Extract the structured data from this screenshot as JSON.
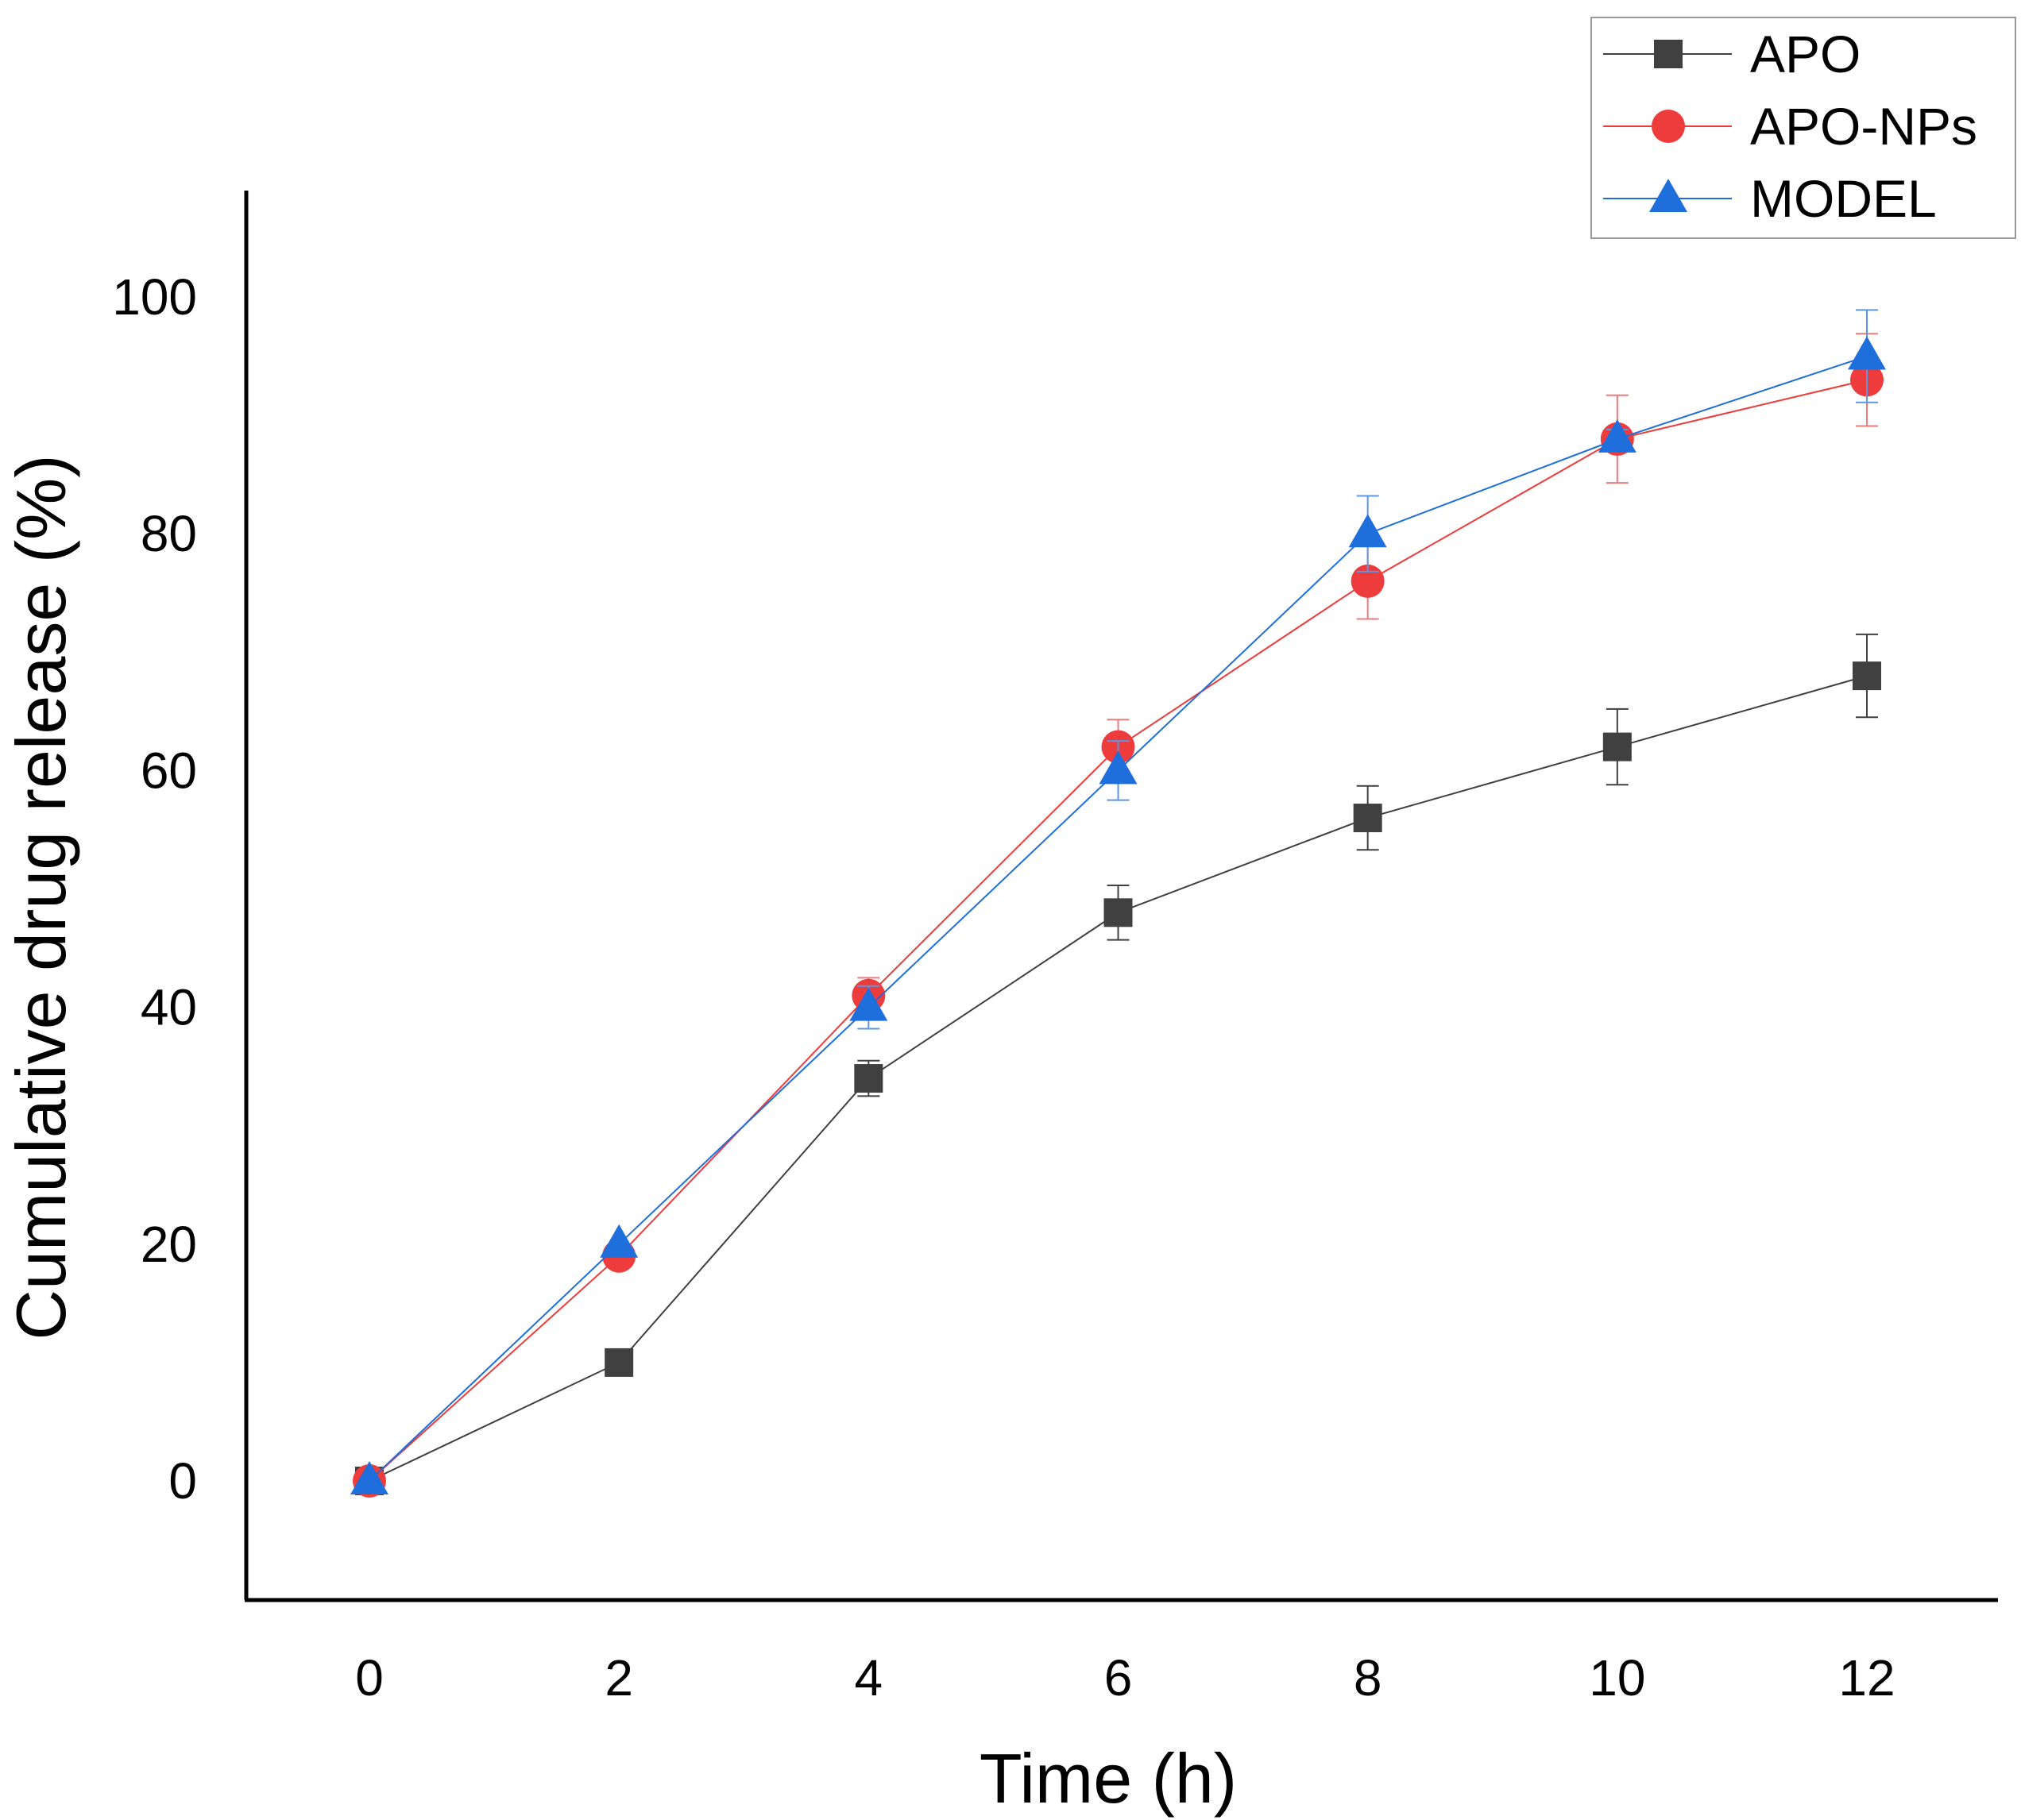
{
  "chart_data": {
    "type": "line",
    "title": "",
    "xlabel": "Time (h)",
    "ylabel": "Cumulative drug release (%)",
    "xlim": [
      -1,
      13
    ],
    "ylim": [
      -10,
      110
    ],
    "xticks": [
      0,
      2,
      4,
      6,
      8,
      10,
      12
    ],
    "yticks": [
      0,
      20,
      40,
      60,
      80,
      100
    ],
    "grid": false,
    "legend_position": "top-right",
    "x": [
      0,
      2,
      4,
      6,
      8,
      10,
      12
    ],
    "series": [
      {
        "name": "APO",
        "marker": "square",
        "color": "#404040",
        "values": [
          0,
          10,
          34,
          48,
          56,
          62,
          68
        ],
        "errors": [
          0,
          0,
          1.5,
          2.3,
          2.7,
          3.2,
          3.5
        ]
      },
      {
        "name": "APO-NPs",
        "marker": "circle",
        "color": "#ee3b3b",
        "values": [
          0,
          19,
          41,
          62,
          76,
          88,
          93
        ],
        "errors": [
          0,
          0,
          1.5,
          2.3,
          3.2,
          3.7,
          3.9
        ]
      },
      {
        "name": "MODEL",
        "marker": "triangle",
        "color": "#1e6fdc",
        "values": [
          0,
          20,
          40,
          60,
          80,
          88,
          95
        ],
        "errors": [
          0,
          0,
          1.8,
          2.5,
          3.2,
          0.8,
          3.9
        ]
      }
    ]
  }
}
